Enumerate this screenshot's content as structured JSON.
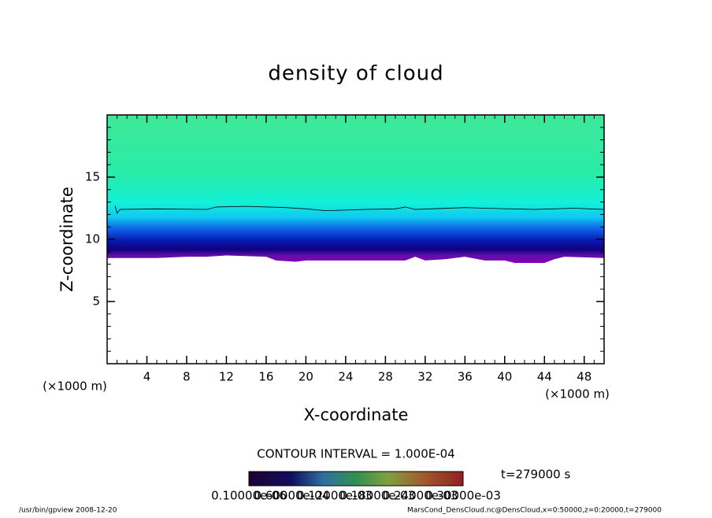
{
  "chart_data": {
    "type": "contour",
    "title": "density of cloud",
    "x_label": "X-coordinate",
    "y_label": "Z-coordinate",
    "x_unit": "(×1000 m)",
    "y_unit": "(×1000 m)",
    "xlim": [
      0,
      50
    ],
    "ylim": [
      0,
      20
    ],
    "xticks": [
      4,
      8,
      12,
      16,
      20,
      24,
      28,
      32,
      36,
      40,
      44,
      48
    ],
    "yticks": [
      5,
      10,
      15
    ],
    "contour_interval": "CONTOUR INTERVAL = 1.000E-04",
    "time_label": "t=279000 s",
    "colorbar_labels": [
      "0.10000e-06",
      "0.60000e-04",
      "0.12000e-03",
      "0.18000e-03",
      "0.24000e-03",
      "0.30000e-03"
    ],
    "contour_line": {
      "x": [
        0.8,
        1.0,
        1.3,
        5,
        10,
        11,
        14,
        18,
        20,
        22,
        26,
        29,
        30,
        31,
        36,
        38,
        43,
        47,
        50
      ],
      "y": [
        12.7,
        12.1,
        12.4,
        12.45,
        12.4,
        12.6,
        12.65,
        12.55,
        12.45,
        12.3,
        12.4,
        12.45,
        12.6,
        12.4,
        12.55,
        12.5,
        12.4,
        12.5,
        12.4
      ]
    },
    "cloud_base": {
      "x": [
        0,
        5,
        8,
        10,
        12,
        16,
        17,
        19,
        20,
        30,
        31,
        32,
        34,
        36,
        38,
        40,
        41,
        44,
        45,
        46,
        50
      ],
      "y": [
        8.5,
        8.5,
        8.6,
        8.6,
        8.7,
        8.6,
        8.3,
        8.2,
        8.3,
        8.3,
        8.6,
        8.3,
        8.4,
        8.6,
        8.3,
        8.3,
        8.1,
        8.1,
        8.4,
        8.6,
        8.5
      ]
    },
    "footer_left": "/usr/bin/gpview   2008-12-20",
    "footer_right": "MarsCond_DensCloud.nc@DensCloud,x=0:50000,z=0:20000,t=279000"
  }
}
